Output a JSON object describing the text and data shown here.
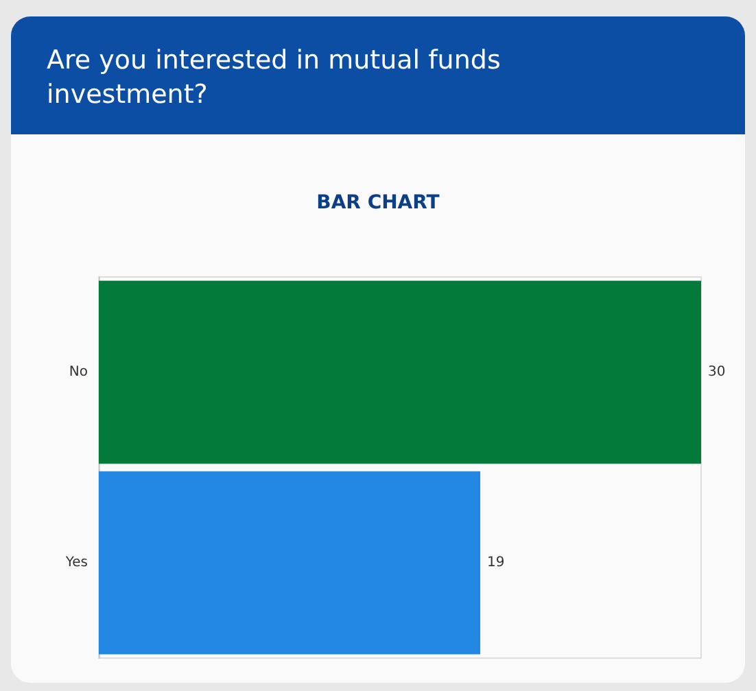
{
  "chart_data": {
    "type": "bar",
    "orientation": "horizontal",
    "title": "Are you interested in mutual funds investment?",
    "subtitle": "BAR CHART",
    "categories": [
      "No",
      "Yes"
    ],
    "values": [
      30,
      19
    ],
    "colors": [
      "#047a3a",
      "#2287e2"
    ],
    "data_labels": true
  }
}
